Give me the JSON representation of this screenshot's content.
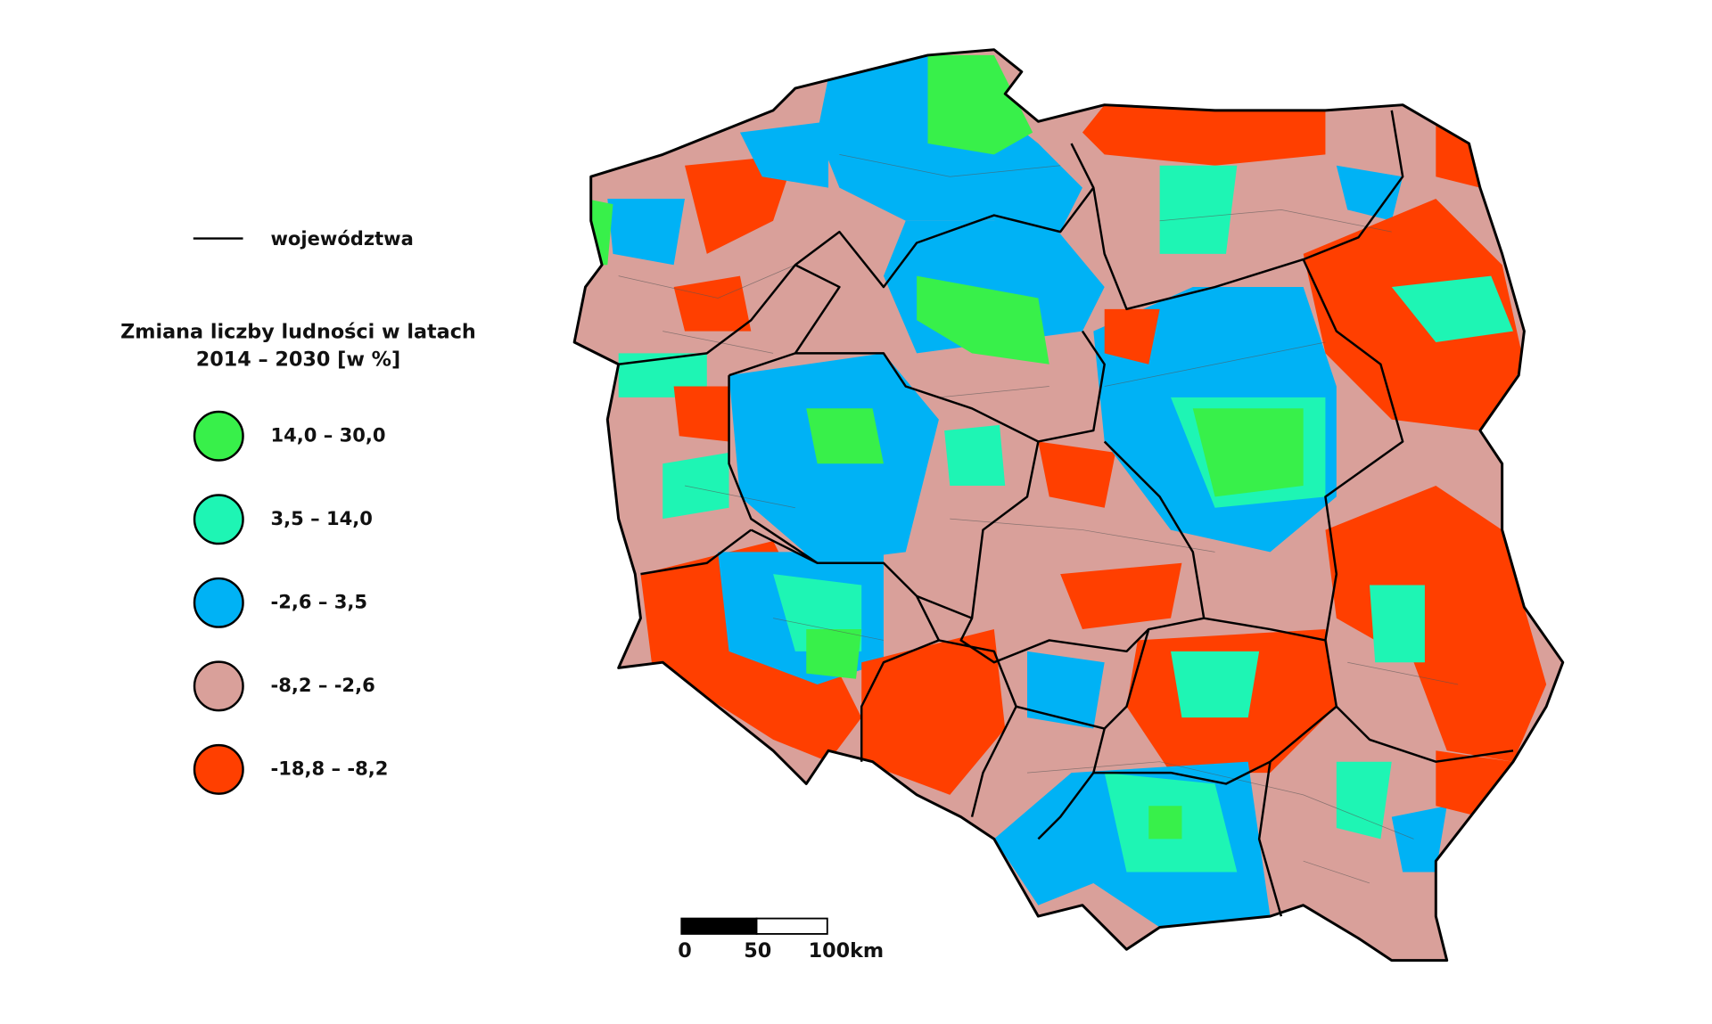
{
  "legend": {
    "boundary_label": "województwa",
    "title_lines": [
      "Zmiana liczby ludności w latach",
      "2014 – 2030 [w %]"
    ],
    "classes": [
      {
        "label": "14,0 – 30,0",
        "color": "#38f04a"
      },
      {
        "label": "3,5 – 14,0",
        "color": "#1ef5b4"
      },
      {
        "label": "-2,6 – 3,5",
        "color": "#00b2f5"
      },
      {
        "label": "-8,2 – -2,6",
        "color": "#d9a09a"
      },
      {
        "label": "-18,8 – -8,2",
        "color": "#ff3f00"
      }
    ]
  },
  "scale_bar": {
    "labels": [
      "0",
      "50",
      "100km"
    ]
  }
}
